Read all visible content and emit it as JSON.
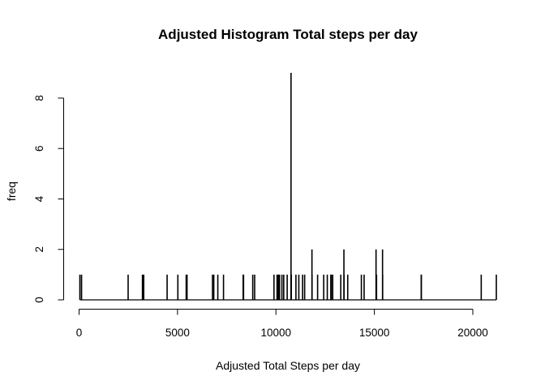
{
  "chart_data": {
    "type": "bar",
    "title": "Adjusted Histogram Total steps per day",
    "xlabel": "Adjusted Total Steps per day",
    "ylabel": "freq",
    "xlim": [
      0,
      21200
    ],
    "ylim": [
      0,
      9
    ],
    "x_ticks": [
      "0",
      "5000",
      "10000",
      "15000",
      "20000"
    ],
    "y_ticks": [
      "0",
      "2",
      "4",
      "6",
      "8"
    ],
    "grid": false,
    "legend": "none",
    "x": [
      41,
      126,
      2492,
      3219,
      3284,
      4472,
      5018,
      5441,
      5484,
      6778,
      6842,
      7047,
      7336,
      8334,
      8355,
      8821,
      8918,
      9900,
      10056,
      10118,
      10139,
      10183,
      10304,
      10395,
      10571,
      10766,
      10765,
      10766,
      10766,
      10766,
      10766,
      10766,
      10766,
      10766,
      11015,
      11162,
      11352,
      11458,
      11829,
      11834,
      12116,
      12426,
      12608,
      12787,
      12811,
      12883,
      13294,
      13452,
      13460,
      13646,
      14339,
      14478,
      15084,
      15098,
      15110,
      15414,
      15420,
      17382,
      17382,
      20427,
      21194
    ],
    "values": [
      1,
      1,
      1,
      1,
      1,
      1,
      1,
      1,
      1,
      1,
      1,
      1,
      1,
      1,
      1,
      1,
      1,
      1,
      1,
      1,
      1,
      1,
      1,
      1,
      1,
      9,
      1,
      1,
      1,
      1,
      1,
      1,
      1,
      1,
      1,
      1,
      1,
      1,
      2,
      1,
      1,
      1,
      1,
      1,
      1,
      1,
      1,
      2,
      1,
      1,
      1,
      1,
      2,
      1,
      1,
      2,
      1,
      1,
      1,
      1,
      1
    ]
  }
}
